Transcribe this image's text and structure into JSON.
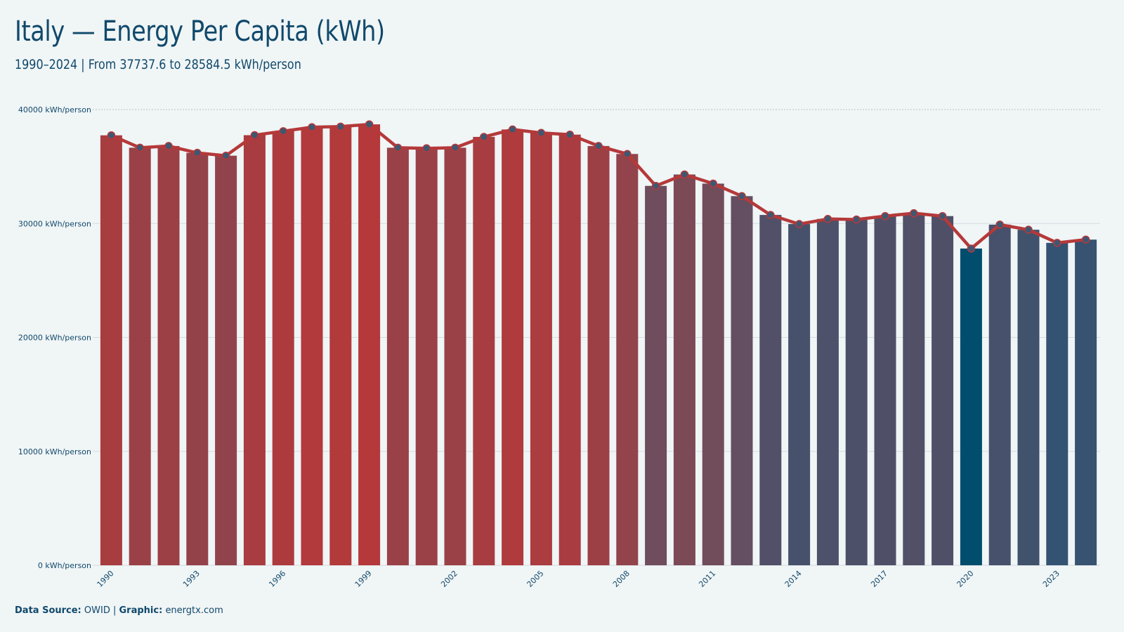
{
  "header": {
    "title": "Italy — Energy Per Capita (kWh)",
    "subtitle": "1990–2024 | From 37737.6 to 28584.5 kWh/person"
  },
  "footer": {
    "source_label": "Data Source:",
    "source_value": "OWID",
    "separator": "|",
    "graphic_label": "Graphic:",
    "graphic_value": "energtx.com"
  },
  "colors": {
    "background": "#f0f5f6",
    "line": "#b5393a",
    "marker": "#3e5872",
    "high": "#b5393a",
    "mid": "#6e4d5d",
    "low": "#2e5474",
    "min": "#004d6e",
    "text": "#10496b"
  },
  "chart_data": {
    "type": "bar",
    "unit_suffix": " kWh/person",
    "x": [
      1990,
      1991,
      1992,
      1993,
      1994,
      1995,
      1996,
      1997,
      1998,
      1999,
      2000,
      2001,
      2002,
      2003,
      2004,
      2005,
      2006,
      2007,
      2008,
      2009,
      2010,
      2011,
      2012,
      2013,
      2014,
      2015,
      2016,
      2017,
      2018,
      2019,
      2020,
      2021,
      2022,
      2023,
      2024
    ],
    "values": [
      37737.6,
      36650,
      36800,
      36200,
      35950,
      37750,
      38100,
      38450,
      38500,
      38700,
      36650,
      36600,
      36650,
      37600,
      38250,
      37950,
      37800,
      36800,
      36100,
      33300,
      34300,
      33500,
      32400,
      30750,
      29950,
      30400,
      30350,
      30650,
      30900,
      30650,
      27800,
      29900,
      29450,
      28300,
      28584.5
    ],
    "x_tick_labels": [
      "1990",
      "1993",
      "1996",
      "1999",
      "2002",
      "2005",
      "2008",
      "2011",
      "2014",
      "2017",
      "2020",
      "2023"
    ],
    "y_ticks": [
      0,
      10000,
      20000,
      30000,
      40000
    ],
    "y_tick_labels": [
      "0 kWh/person",
      "10000 kWh/person",
      "20000 kWh/person",
      "30000 kWh/person",
      "40000 kWh/person"
    ],
    "ylim": [
      0,
      40000
    ],
    "xlabel": "",
    "ylabel": "",
    "overlay": "line-with-markers",
    "grid": true
  }
}
